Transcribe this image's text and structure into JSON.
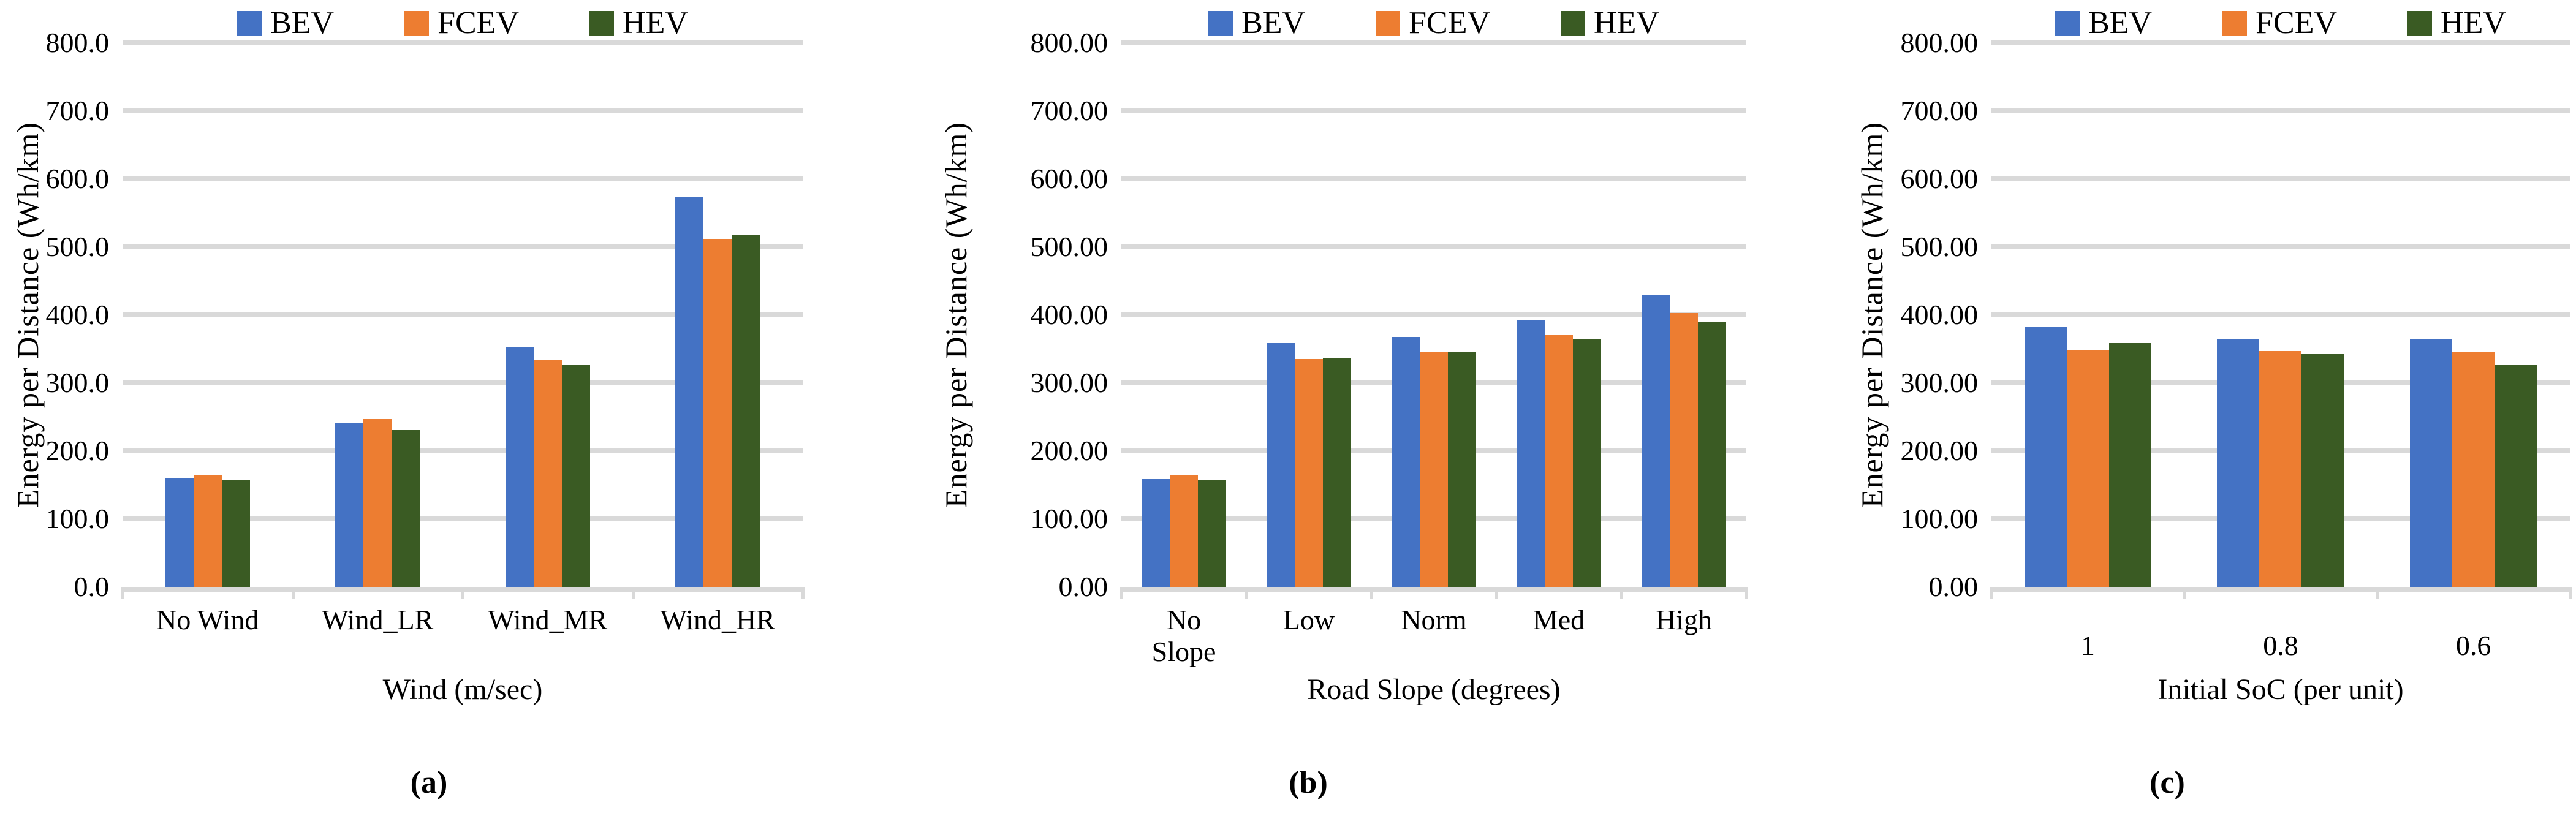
{
  "figure": {
    "background": "#ffffff",
    "y_axis_title": "Energy per Distance (Wh/km)"
  },
  "colors": {
    "BEV": "#4472C4",
    "FCEV": "#ED7D31",
    "HEV": "#3A5B23",
    "gridline": "#D9D9D9",
    "axis_line": "#D9D9D9",
    "text": "#000000"
  },
  "legend_entries": [
    "BEV",
    "FCEV",
    "HEV"
  ],
  "chart_data": [
    {
      "type": "bar",
      "caption": "(a)",
      "title": "",
      "xlabel": "Wind (m/sec)",
      "ylabel": "Energy per Distance (Wh/km)",
      "ylim": [
        0,
        800
      ],
      "grid": true,
      "legend_position": "top",
      "ytick_labels": [
        "800.0",
        "700.0",
        "600.0",
        "500.0",
        "400.0",
        "300.0",
        "200.0",
        "100.0",
        "0.0"
      ],
      "categories": [
        "No Wind",
        "Wind_LR",
        "Wind_MR",
        "Wind_HR"
      ],
      "series": [
        {
          "name": "BEV",
          "values": [
            160,
            241,
            352,
            574
          ]
        },
        {
          "name": "FCEV",
          "values": [
            165,
            247,
            333,
            512
          ]
        },
        {
          "name": "HEV",
          "values": [
            157,
            231,
            327,
            518
          ]
        }
      ]
    },
    {
      "type": "bar",
      "caption": "(b)",
      "title": "",
      "xlabel": "Road Slope (degrees)",
      "ylabel": "Energy per Distance (Wh/km)",
      "ylim": [
        0,
        800
      ],
      "grid": true,
      "legend_position": "top",
      "ytick_labels": [
        "800.00",
        "700.00",
        "600.00",
        "500.00",
        "400.00",
        "300.00",
        "200.00",
        "100.00",
        "0.00"
      ],
      "categories": [
        "No Slope",
        "Low",
        "Norm",
        "Med",
        "High"
      ],
      "series": [
        {
          "name": "BEV",
          "values": [
            159,
            359,
            368,
            393,
            430
          ]
        },
        {
          "name": "FCEV",
          "values": [
            164,
            335,
            345,
            370,
            403
          ]
        },
        {
          "name": "HEV",
          "values": [
            157,
            336,
            345,
            365,
            390
          ]
        }
      ]
    },
    {
      "type": "bar",
      "caption": "(c)",
      "title": "",
      "xlabel": "Initial SoC (per unit)",
      "ylabel": "Energy per Distance (Wh/km)",
      "ylim": [
        0,
        800
      ],
      "grid": true,
      "legend_position": "top",
      "ytick_labels": [
        "800.00",
        "700.00",
        "600.00",
        "500.00",
        "400.00",
        "300.00",
        "200.00",
        "100.00",
        "0.00"
      ],
      "categories": [
        "1",
        "0.8",
        "0.6"
      ],
      "series": [
        {
          "name": "BEV",
          "values": [
            382,
            365,
            364
          ]
        },
        {
          "name": "FCEV",
          "values": [
            348,
            347,
            345
          ]
        },
        {
          "name": "HEV",
          "values": [
            359,
            342,
            327
          ]
        }
      ]
    }
  ]
}
